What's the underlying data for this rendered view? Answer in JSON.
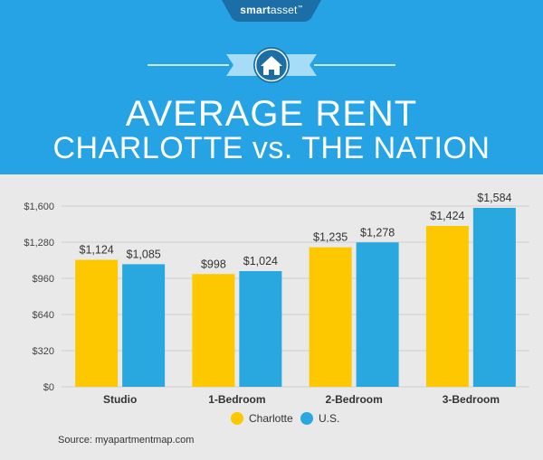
{
  "brand": {
    "logo_part1": "smart",
    "logo_part2": "asset",
    "trademark": "™"
  },
  "header": {
    "title_line1": "AVERAGE RENT",
    "title_line2": "CHARLOTTE vs. THE NATION",
    "icon": "house-icon"
  },
  "colors": {
    "header_bg": "#25a3e4",
    "charlotte": "#fdc800",
    "us": "#29a8e0",
    "chart_bg": "#e9e9e9"
  },
  "chart_data": {
    "type": "bar",
    "title": "",
    "xlabel": "",
    "ylabel": "",
    "categories": [
      "Studio",
      "1-Bedroom",
      "2-Bedroom",
      "3-Bedroom"
    ],
    "series": [
      {
        "name": "Charlotte",
        "values": [
          1124,
          998,
          1235,
          1424
        ],
        "labels": [
          "$1,124",
          "$998",
          "$1,235",
          "$1,424"
        ],
        "color": "#fdc800"
      },
      {
        "name": "U.S.",
        "values": [
          1085,
          1024,
          1278,
          1584
        ],
        "labels": [
          "$1,085",
          "$1,024",
          "$1,278",
          "$1,584"
        ],
        "color": "#29a8e0"
      }
    ],
    "ylim": [
      0,
      1600
    ],
    "yticks": [
      0,
      320,
      640,
      960,
      1280,
      1600
    ],
    "ytick_labels": [
      "$0",
      "$320",
      "$640",
      "$960",
      "$1,280",
      "$1,600"
    ],
    "grid": true,
    "legend_position": "bottom"
  },
  "source": "Source: myapartmentmap.com"
}
